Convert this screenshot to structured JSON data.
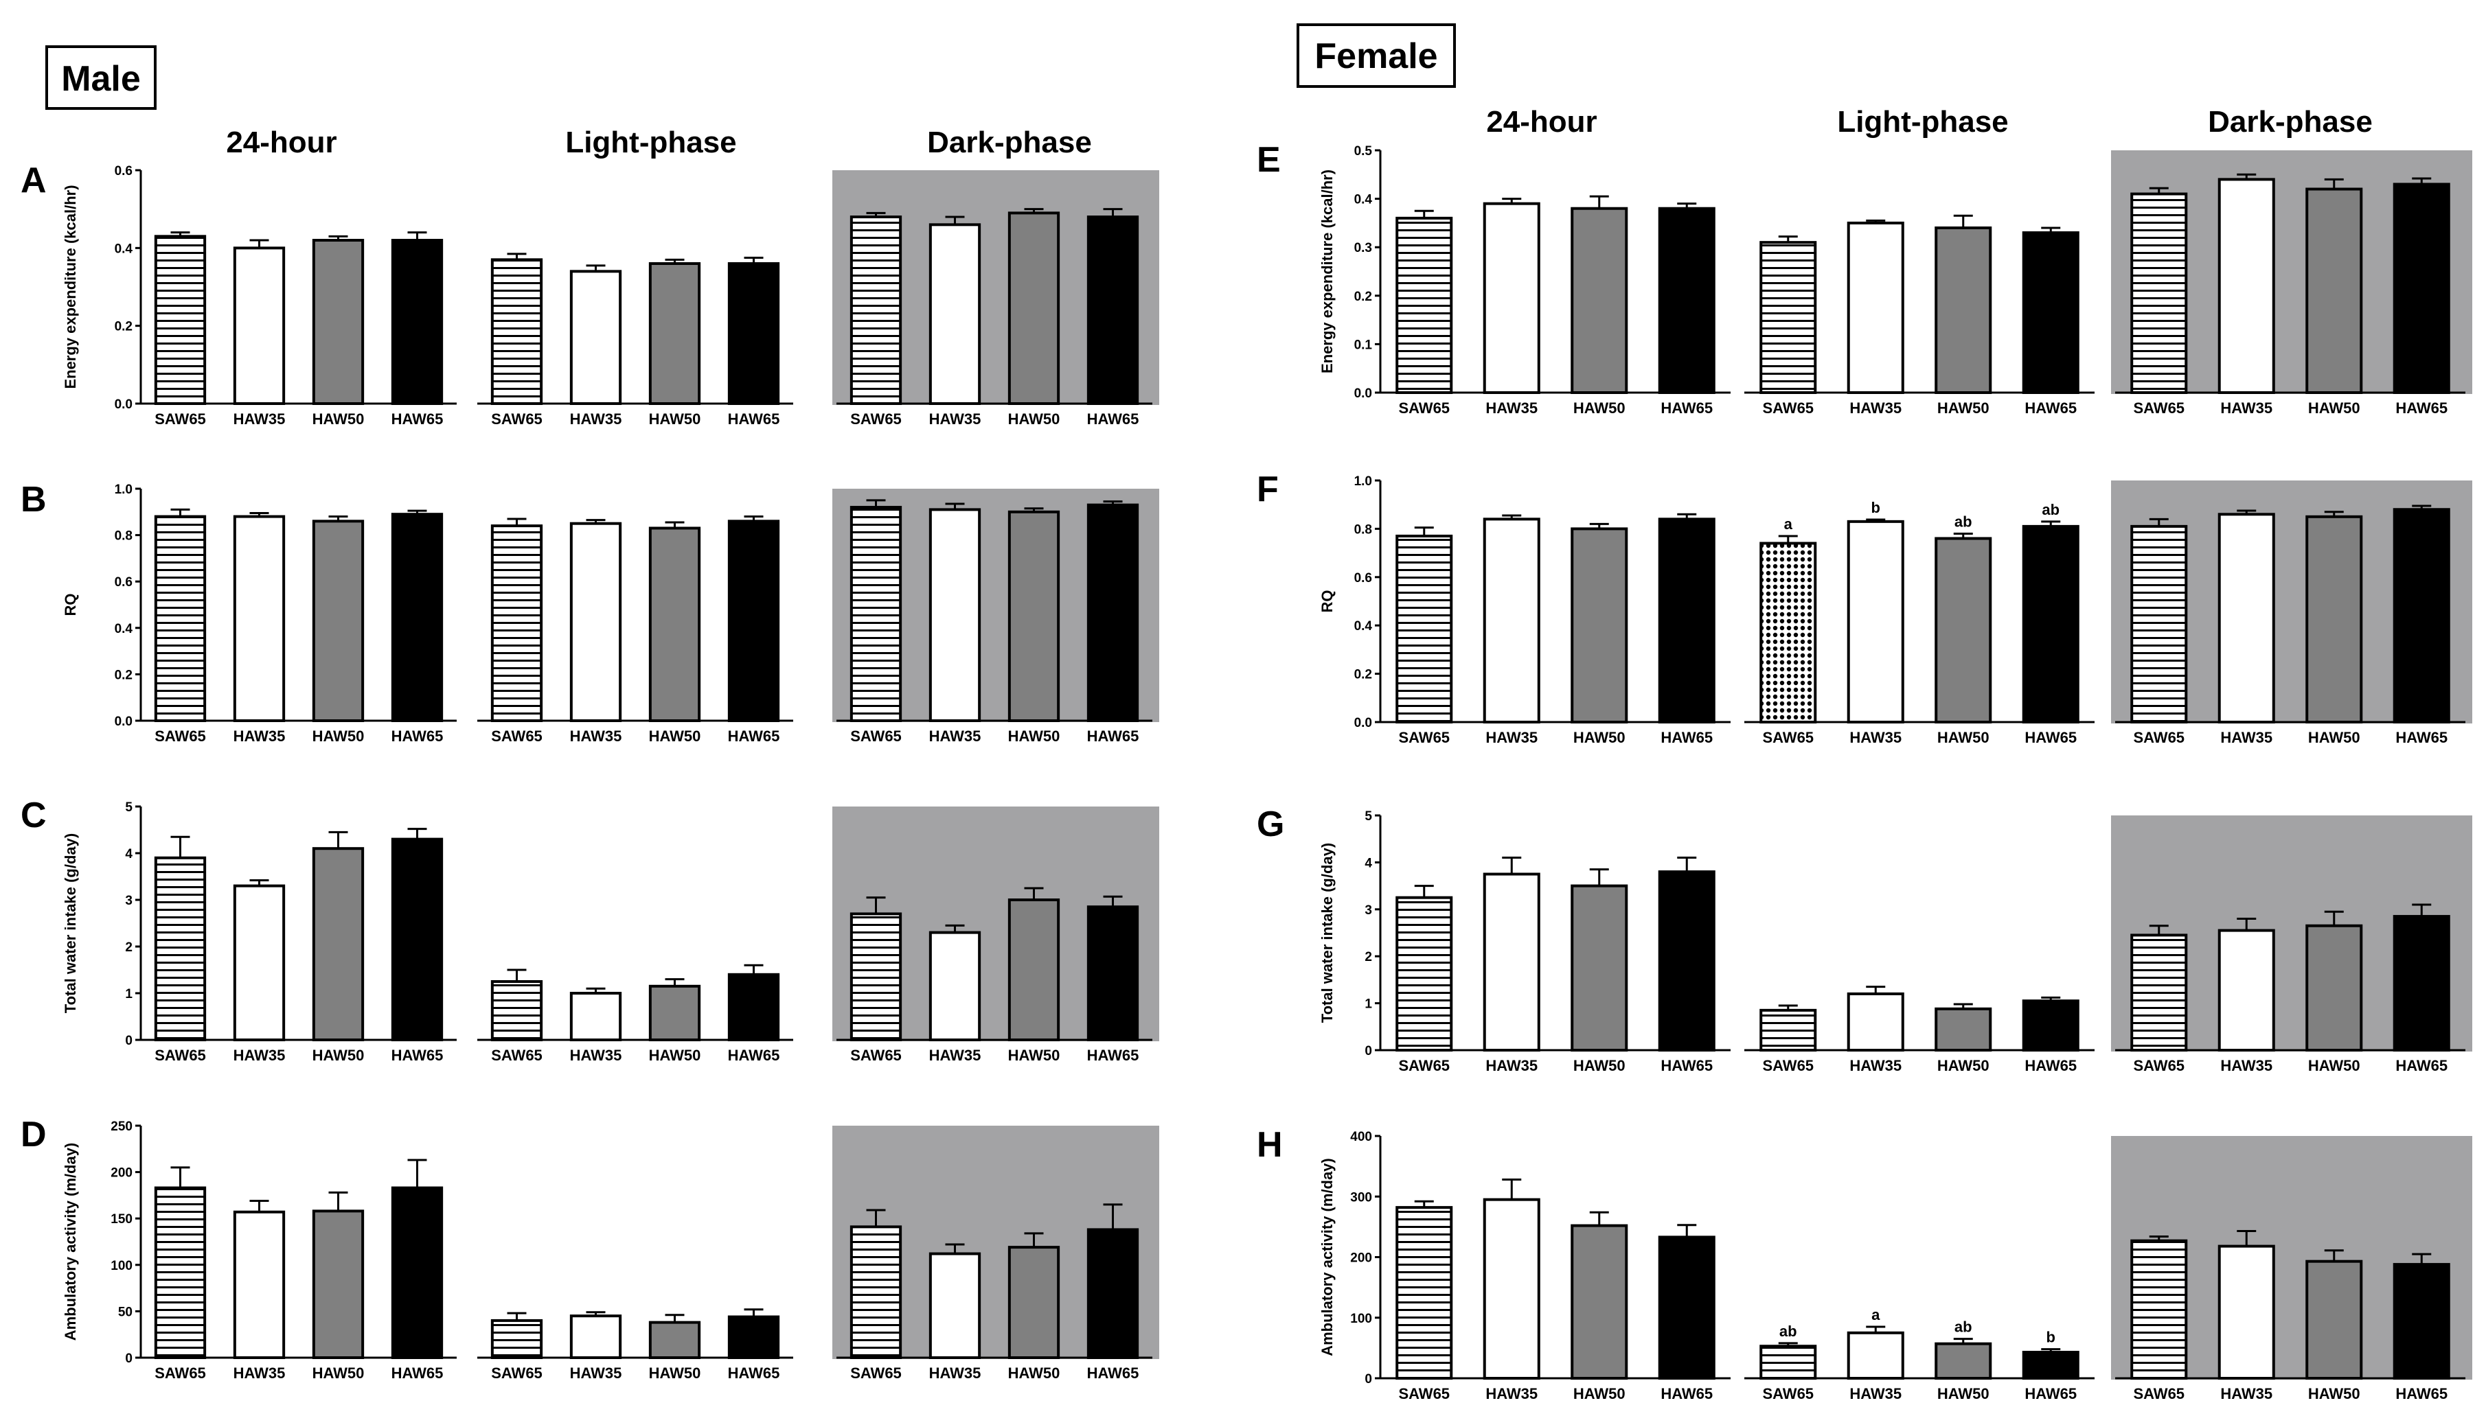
{
  "figure": {
    "labels": {
      "male": "Male",
      "female": "Female"
    },
    "phases": [
      "24-hour",
      "Light-phase",
      "Dark-phase"
    ],
    "colors": {
      "dark_bg": "#a3a3a5",
      "gray_bar": "#808080",
      "black_bar": "#000000",
      "white_bar": "#ffffff"
    }
  },
  "chart_data": [
    {
      "panel": "A",
      "sex": "Male",
      "type": "bar",
      "ylabel": "Energy expenditure (kcal/hr)",
      "ylim": [
        0,
        0.6
      ],
      "yticks": [
        "0.0",
        "0.2",
        "0.4",
        "0.6"
      ],
      "categories": [
        "SAW65",
        "HAW35",
        "HAW50",
        "HAW65"
      ],
      "groups": [
        {
          "phase": "24-hour",
          "values": [
            0.43,
            0.4,
            0.42,
            0.42
          ],
          "errors": [
            0.01,
            0.02,
            0.01,
            0.02
          ]
        },
        {
          "phase": "Light-phase",
          "values": [
            0.37,
            0.34,
            0.36,
            0.36
          ],
          "errors": [
            0.015,
            0.015,
            0.01,
            0.015
          ]
        },
        {
          "phase": "Dark-phase",
          "values": [
            0.48,
            0.46,
            0.49,
            0.48
          ],
          "errors": [
            0.01,
            0.02,
            0.01,
            0.02
          ]
        }
      ]
    },
    {
      "panel": "B",
      "sex": "Male",
      "type": "bar",
      "ylabel": "RQ",
      "ylim": [
        0,
        1.0
      ],
      "yticks": [
        "0.0",
        "0.2",
        "0.4",
        "0.6",
        "0.8",
        "1.0"
      ],
      "categories": [
        "SAW65",
        "HAW35",
        "HAW50",
        "HAW65"
      ],
      "groups": [
        {
          "phase": "24-hour",
          "values": [
            0.88,
            0.88,
            0.86,
            0.89
          ],
          "errors": [
            0.03,
            0.015,
            0.02,
            0.015
          ]
        },
        {
          "phase": "Light-phase",
          "values": [
            0.84,
            0.85,
            0.83,
            0.86
          ],
          "errors": [
            0.03,
            0.015,
            0.025,
            0.02
          ]
        },
        {
          "phase": "Dark-phase",
          "values": [
            0.92,
            0.91,
            0.9,
            0.93
          ],
          "errors": [
            0.03,
            0.025,
            0.015,
            0.015
          ]
        }
      ]
    },
    {
      "panel": "C",
      "sex": "Male",
      "type": "bar",
      "ylabel": "Total water intake (g/day)",
      "ylim": [
        0,
        5
      ],
      "yticks": [
        "0",
        "1",
        "2",
        "3",
        "4",
        "5"
      ],
      "categories": [
        "SAW65",
        "HAW35",
        "HAW50",
        "HAW65"
      ],
      "groups": [
        {
          "phase": "24-hour",
          "values": [
            3.9,
            3.3,
            4.1,
            4.3
          ],
          "errors": [
            0.45,
            0.12,
            0.35,
            0.22
          ]
        },
        {
          "phase": "Light-phase",
          "values": [
            1.25,
            1.0,
            1.15,
            1.4
          ],
          "errors": [
            0.25,
            0.1,
            0.15,
            0.2
          ]
        },
        {
          "phase": "Dark-phase",
          "values": [
            2.7,
            2.3,
            3.0,
            2.85
          ],
          "errors": [
            0.35,
            0.15,
            0.25,
            0.22
          ]
        }
      ]
    },
    {
      "panel": "D",
      "sex": "Male",
      "type": "bar",
      "ylabel": "Ambulatory activity (m/day)",
      "ylim": [
        0,
        250
      ],
      "yticks": [
        "0",
        "50",
        "100",
        "150",
        "200",
        "250"
      ],
      "categories": [
        "SAW65",
        "HAW35",
        "HAW50",
        "HAW65"
      ],
      "groups": [
        {
          "phase": "24-hour",
          "values": [
            183,
            157,
            158,
            183
          ],
          "errors": [
            22,
            12,
            20,
            30
          ]
        },
        {
          "phase": "Light-phase",
          "values": [
            40,
            45,
            38,
            44
          ],
          "errors": [
            8,
            4,
            8,
            8
          ]
        },
        {
          "phase": "Dark-phase",
          "values": [
            141,
            112,
            119,
            138
          ],
          "errors": [
            18,
            10,
            15,
            27
          ]
        }
      ]
    },
    {
      "panel": "E",
      "sex": "Female",
      "type": "bar",
      "ylabel": "Energy expenditure (kcal/hr)",
      "ylim": [
        0,
        0.5
      ],
      "yticks": [
        "0.0",
        "0.1",
        "0.2",
        "0.3",
        "0.4",
        "0.5"
      ],
      "categories": [
        "SAW65",
        "HAW35",
        "HAW50",
        "HAW65"
      ],
      "groups": [
        {
          "phase": "24-hour",
          "values": [
            0.36,
            0.39,
            0.38,
            0.38
          ],
          "errors": [
            0.015,
            0.01,
            0.025,
            0.01
          ]
        },
        {
          "phase": "Light-phase",
          "values": [
            0.31,
            0.35,
            0.34,
            0.33
          ],
          "errors": [
            0.012,
            0.005,
            0.025,
            0.01
          ]
        },
        {
          "phase": "Dark-phase",
          "values": [
            0.41,
            0.44,
            0.42,
            0.43
          ],
          "errors": [
            0.012,
            0.01,
            0.02,
            0.012
          ]
        }
      ]
    },
    {
      "panel": "F",
      "sex": "Female",
      "type": "bar",
      "ylabel": "RQ",
      "ylim": [
        0,
        1.0
      ],
      "yticks": [
        "0.0",
        "0.2",
        "0.4",
        "0.6",
        "0.8",
        "1.0"
      ],
      "categories": [
        "SAW65",
        "HAW35",
        "HAW50",
        "HAW65"
      ],
      "groups": [
        {
          "phase": "24-hour",
          "values": [
            0.77,
            0.84,
            0.8,
            0.84
          ],
          "errors": [
            0.035,
            0.015,
            0.02,
            0.02
          ]
        },
        {
          "phase": "Light-phase",
          "values": [
            0.74,
            0.83,
            0.76,
            0.81
          ],
          "errors": [
            0.03,
            0.008,
            0.02,
            0.02
          ],
          "annotations": [
            "a",
            "b",
            "ab",
            "ab"
          ]
        },
        {
          "phase": "Dark-phase",
          "values": [
            0.81,
            0.86,
            0.85,
            0.88
          ],
          "errors": [
            0.03,
            0.015,
            0.02,
            0.015
          ]
        }
      ]
    },
    {
      "panel": "G",
      "sex": "Female",
      "type": "bar",
      "ylabel": "Total water intake (g/day)",
      "ylim": [
        0,
        5
      ],
      "yticks": [
        "0",
        "1",
        "2",
        "3",
        "4",
        "5"
      ],
      "categories": [
        "SAW65",
        "HAW35",
        "HAW50",
        "HAW65"
      ],
      "groups": [
        {
          "phase": "24-hour",
          "values": [
            3.25,
            3.75,
            3.5,
            3.8
          ],
          "errors": [
            0.25,
            0.35,
            0.35,
            0.3
          ]
        },
        {
          "phase": "Light-phase",
          "values": [
            0.85,
            1.2,
            0.88,
            1.05
          ],
          "errors": [
            0.1,
            0.15,
            0.1,
            0.07
          ]
        },
        {
          "phase": "Dark-phase",
          "values": [
            2.45,
            2.55,
            2.65,
            2.85
          ],
          "errors": [
            0.2,
            0.25,
            0.3,
            0.25
          ]
        }
      ]
    },
    {
      "panel": "H",
      "sex": "Female",
      "type": "bar",
      "ylabel": "Ambulatory activity (m/day)",
      "ylim": [
        0,
        400
      ],
      "yticks": [
        "0",
        "100",
        "200",
        "300",
        "400"
      ],
      "categories": [
        "SAW65",
        "HAW35",
        "HAW50",
        "HAW65"
      ],
      "groups": [
        {
          "phase": "24-hour",
          "values": [
            282,
            295,
            252,
            233
          ],
          "errors": [
            10,
            33,
            22,
            20
          ]
        },
        {
          "phase": "Light-phase",
          "values": [
            53,
            75,
            57,
            43
          ],
          "errors": [
            5,
            10,
            8,
            5
          ],
          "annotations": [
            "ab",
            "a",
            "ab",
            "b"
          ]
        },
        {
          "phase": "Dark-phase",
          "values": [
            227,
            218,
            193,
            188
          ],
          "errors": [
            7,
            25,
            18,
            17
          ]
        }
      ]
    }
  ]
}
